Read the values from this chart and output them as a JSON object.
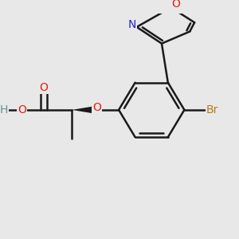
{
  "background_color": "#e8e8e8",
  "fig_size": [
    3.0,
    3.0
  ],
  "dpi": 100,
  "colors": {
    "bond": "#1a1a1a",
    "O": "#dd2211",
    "N": "#2222cc",
    "Br": "#b87820",
    "H": "#6a9090",
    "C": "#1a1a1a"
  },
  "bond_lw": 1.8,
  "font_size": 10.0
}
